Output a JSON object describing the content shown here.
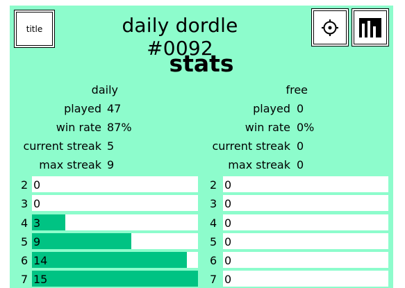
{
  "header": {
    "title_button": "title",
    "app_title": "daily dordle #0092",
    "settings_icon": "gear-icon",
    "stats_icon": "bar-chart-icon"
  },
  "heading": "stats",
  "colors": {
    "background": "#8dfccc",
    "bar_fill": "#00c383",
    "track": "#ffffff"
  },
  "daily": {
    "label": "daily",
    "rows": [
      {
        "label": "played",
        "value": "47"
      },
      {
        "label": "win rate",
        "value": "87%"
      },
      {
        "label": "current streak",
        "value": "5"
      },
      {
        "label": "max streak",
        "value": "9"
      }
    ],
    "distribution": [
      {
        "guess": "2",
        "count": "0",
        "fraction": 0
      },
      {
        "guess": "3",
        "count": "0",
        "fraction": 0
      },
      {
        "guess": "4",
        "count": "3",
        "fraction": 0.2
      },
      {
        "guess": "5",
        "count": "9",
        "fraction": 0.6
      },
      {
        "guess": "6",
        "count": "14",
        "fraction": 0.933
      },
      {
        "guess": "7",
        "count": "15",
        "fraction": 1
      }
    ]
  },
  "free": {
    "label": "free",
    "rows": [
      {
        "label": "played",
        "value": "0"
      },
      {
        "label": "win rate",
        "value": "0%"
      },
      {
        "label": "current streak",
        "value": "0"
      },
      {
        "label": "max streak",
        "value": "0"
      }
    ],
    "distribution": [
      {
        "guess": "2",
        "count": "0",
        "fraction": 0
      },
      {
        "guess": "3",
        "count": "0",
        "fraction": 0
      },
      {
        "guess": "4",
        "count": "0",
        "fraction": 0
      },
      {
        "guess": "5",
        "count": "0",
        "fraction": 0
      },
      {
        "guess": "6",
        "count": "0",
        "fraction": 0
      },
      {
        "guess": "7",
        "count": "0",
        "fraction": 0
      }
    ]
  }
}
